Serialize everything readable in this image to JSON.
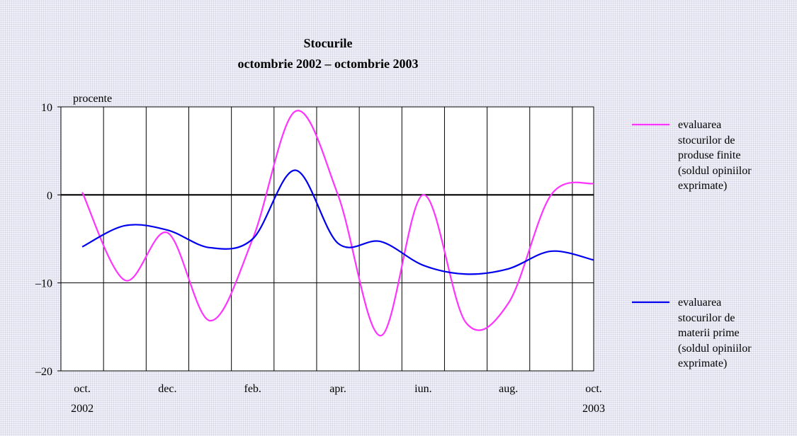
{
  "chart_data": {
    "type": "line",
    "title": "Stocurile",
    "subtitle": "octombrie 2002 – octombrie 2003",
    "y_label": "procente",
    "categories": [
      "oct.\n2002",
      null,
      "dec.",
      null,
      "feb.",
      null,
      "apr.",
      null,
      "iun.",
      null,
      "aug.",
      null,
      "oct.\n2003"
    ],
    "series": [
      {
        "name": "evaluarea stocurilor de produse finite (soldul opiniilor exprimate)",
        "color": "#ff33ff",
        "values": [
          0.3,
          -9.7,
          -4.3,
          -14.3,
          -5,
          9.5,
          0,
          -16,
          0,
          -14.5,
          -12.3,
          0,
          1.3
        ]
      },
      {
        "name": "evaluarea stocurilor de materii prime (soldul opiniilor exprimate)",
        "color": "#0000ee",
        "values": [
          -5.9,
          -3.5,
          -4,
          -6,
          -5,
          2.8,
          -5.5,
          -5.3,
          -8,
          -9,
          -8.4,
          -6.4,
          -7.4
        ]
      }
    ],
    "ylim": [
      -20,
      10
    ],
    "yticks": [
      {
        "value": -20,
        "label": "–20"
      },
      {
        "value": -10,
        "label": "–10"
      },
      0,
      10
    ],
    "grid": true,
    "legend": "right"
  }
}
